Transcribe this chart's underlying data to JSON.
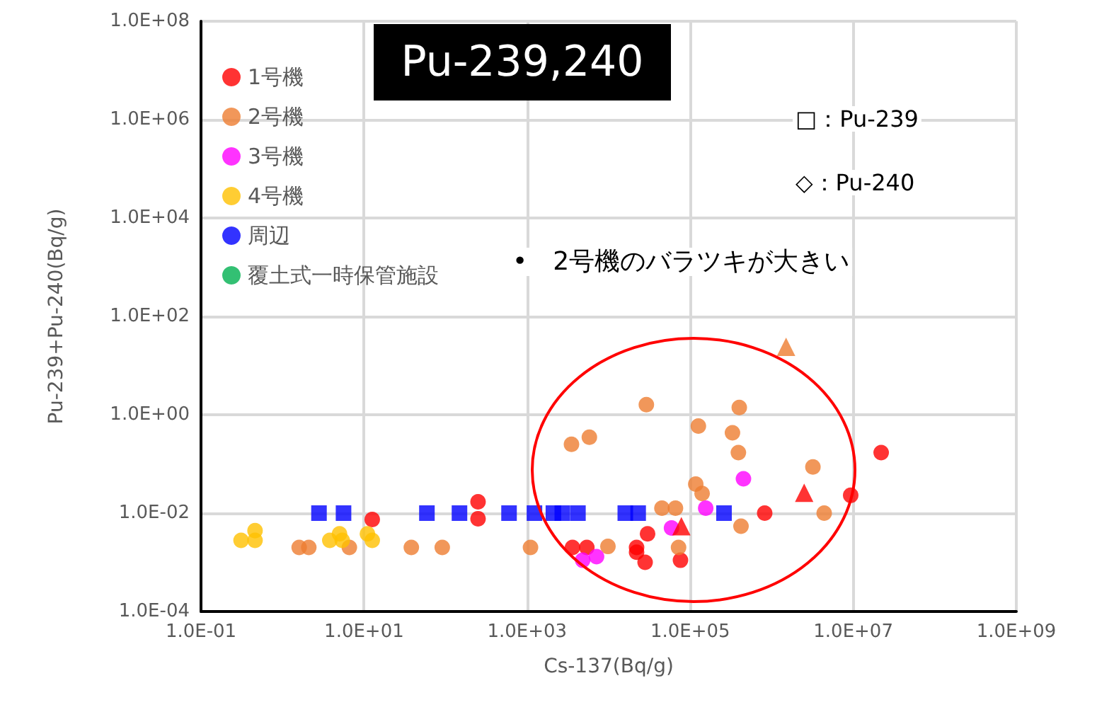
{
  "chart_data": {
    "type": "scatter",
    "title": "Pu-239,240",
    "xlabel": "Cs-137(Bq/g)",
    "ylabel": "Pu-239+Pu-240(Bq/g)",
    "annotations": [
      "□：Pu-239",
      "◇：Pu-240",
      "•　2号機のバラツキが大きい"
    ],
    "log": "xy",
    "grid": true,
    "legend": "top left",
    "marker": "circle",
    "xlim": [
      0.1,
      1000000000
    ],
    "ylim": [
      0.0001,
      100000000
    ],
    "xticks": [
      {
        "value": 0.1,
        "label": "1.0E-01"
      },
      {
        "value": 10,
        "label": "1.0E+01"
      },
      {
        "value": 1000,
        "label": "1.0E+03"
      },
      {
        "value": 100000,
        "label": "1.0E+05"
      },
      {
        "value": 10000000,
        "label": "1.0E+07"
      },
      {
        "value": 1000000000,
        "label": "1.0E+09"
      }
    ],
    "yticks": [
      {
        "value": 0.0001,
        "label": "1.0E-04"
      },
      {
        "value": 0.01,
        "label": "1.0E-02"
      },
      {
        "value": 1,
        "label": "1.0E+00"
      },
      {
        "value": 100,
        "label": "1.0E+02"
      },
      {
        "value": 10000,
        "label": "1.0E+04"
      },
      {
        "value": 1000000,
        "label": "1.0E+06"
      },
      {
        "value": 100000000,
        "label": "1.0E+08"
      }
    ],
    "series": [
      {
        "name": "1号機",
        "color": "#ff0000",
        "x": [
          250,
          12.6,
          250,
          820000,
          9300000,
          22000000,
          30000,
          22000,
          28000,
          76000,
          3600,
          5400,
          22000
        ],
        "values": [
          0.017,
          0.0074,
          0.0077,
          0.01,
          0.023,
          0.17,
          0.0038,
          0.0016,
          0.001,
          0.0011,
          0.002,
          0.002,
          0.002
        ]
      },
      {
        "name": "2号機",
        "color": "#ed7d31",
        "x": [
          29000,
          400000,
          126000,
          330000,
          390000,
          3500,
          5800,
          3200000,
          117000,
          140000,
          45000,
          66000,
          420000,
          9800,
          1.6,
          2.1,
          6.6,
          38,
          91,
          1100,
          4400000,
          72000
        ],
        "values": [
          1.6,
          1.4,
          0.59,
          0.43,
          0.17,
          0.25,
          0.35,
          0.087,
          0.039,
          0.025,
          0.0126,
          0.0126,
          0.0054,
          0.0021,
          0.002,
          0.002,
          0.002,
          0.002,
          0.002,
          0.002,
          0.01,
          0.002
        ]
      },
      {
        "name": "3号機",
        "color": "#ff00ff",
        "x": [
          450000,
          155000,
          59000,
          4800,
          7100
        ],
        "values": [
          0.05,
          0.0126,
          0.005,
          0.0011,
          0.0013
        ]
      },
      {
        "name": "4号機",
        "color": "#ffc000",
        "x": [
          0.31,
          0.46,
          0.46,
          3.8,
          5,
          5.4,
          11,
          12.6
        ],
        "values": [
          0.0028,
          0.0044,
          0.0028,
          0.0028,
          0.0038,
          0.0028,
          0.0038,
          0.0028
        ]
      },
      {
        "name": "周辺",
        "color": "#0000ff",
        "marker": "square",
        "x": [
          2.8,
          5.6,
          59,
          148,
          600,
          1230,
          2100,
          2700,
          4200,
          16000,
          23000,
          260000
        ],
        "values": [
          0.01,
          0.01,
          0.01,
          0.01,
          0.01,
          0.01,
          0.01,
          0.01,
          0.01,
          0.01,
          0.01,
          0.01
        ]
      },
      {
        "name": "覆土式一時保管施設",
        "color": "#00b050"
      },
      {
        "color": "#ed7d31",
        "marker": "triangle",
        "x": [
          1500000
        ],
        "values": [
          24
        ]
      },
      {
        "color": "#ff0000",
        "marker": "triangle",
        "x": [
          2500000,
          78000
        ],
        "values": [
          0.026,
          0.0054
        ]
      }
    ]
  }
}
